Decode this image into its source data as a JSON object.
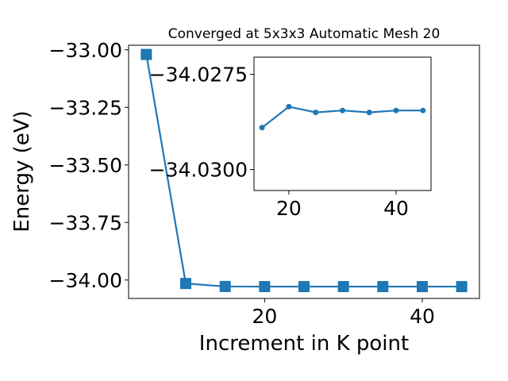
{
  "chart_data": [
    {
      "type": "line",
      "title": "Converged at 5x3x3 Automatic Mesh 20",
      "xlabel": "Increment in K point",
      "ylabel": "Energy (eV)",
      "xlim": [
        2.75,
        47.25
      ],
      "ylim": [
        -34.08,
        -32.98
      ],
      "x_ticks": [
        20,
        40
      ],
      "x_tick_labels": [
        "20",
        "40"
      ],
      "y_ticks": [
        -34.0,
        -33.75,
        -33.5,
        -33.25,
        -33.0
      ],
      "y_tick_labels": [
        "−34.00",
        "−33.75",
        "−33.50",
        "−33.25",
        "−33.00"
      ],
      "marker": "square",
      "color": "#1f77b4",
      "series": [
        {
          "x": [
            5,
            10,
            15,
            20,
            25,
            30,
            35,
            40,
            45
          ],
          "y": [
            -33.02,
            -34.015,
            -34.028,
            -34.0285,
            -34.0285,
            -34.0285,
            -34.0285,
            -34.0285,
            -34.0285
          ]
        }
      ]
    },
    {
      "type": "line",
      "title": "",
      "xlabel": "",
      "ylabel": "",
      "xlim": [
        13.5,
        46.5
      ],
      "ylim": [
        -34.03055,
        -34.02705
      ],
      "x_ticks": [
        20,
        40
      ],
      "x_tick_labels": [
        "20",
        "40"
      ],
      "y_ticks": [
        -34.03,
        -34.0275
      ],
      "y_tick_labels": [
        "−34.0300",
        "−34.0275"
      ],
      "marker": "circle",
      "color": "#1f77b4",
      "series": [
        {
          "x": [
            15,
            20,
            25,
            30,
            35,
            40,
            45
          ],
          "y": [
            -34.0289,
            -34.02835,
            -34.0285,
            -34.02845,
            -34.0285,
            -34.02845,
            -34.02845
          ]
        }
      ]
    }
  ]
}
